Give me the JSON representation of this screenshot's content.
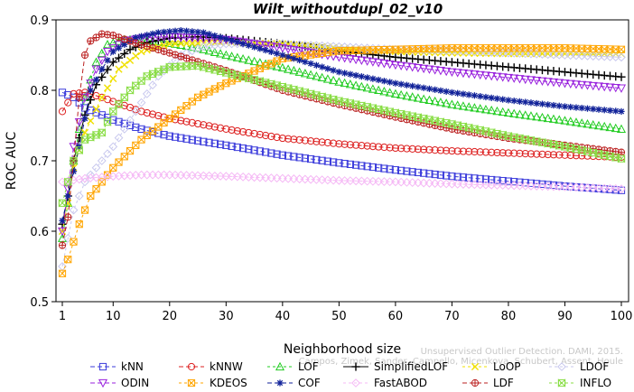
{
  "chart_data": {
    "type": "line",
    "title": "Wilt_withoutdupl_02_v10",
    "xlabel": "Neighborhood size",
    "ylabel": "ROC AUC",
    "xlim": [
      1,
      100
    ],
    "ylim": [
      0.5,
      0.9
    ],
    "xticks": [
      1,
      10,
      20,
      30,
      40,
      50,
      60,
      70,
      80,
      90,
      100
    ],
    "yticks": [
      0.5,
      0.6,
      0.7,
      0.8,
      0.9
    ],
    "grid": false,
    "legend_position": "bottom",
    "watermark": [
      "Campos, Zimek, Sander, Campello, Micenkova, Schubert, Assent, Houle",
      "Unsupervised Outlier Detection. DAMI, 2015."
    ],
    "series": [
      {
        "name": "kNN",
        "color": "#3b3bdb",
        "marker": "square",
        "dash": "5,3",
        "points": [
          [
            1,
            0.797
          ],
          [
            3,
            0.79
          ],
          [
            5,
            0.775
          ],
          [
            8,
            0.765
          ],
          [
            10,
            0.758
          ],
          [
            15,
            0.745
          ],
          [
            20,
            0.735
          ],
          [
            30,
            0.722
          ],
          [
            40,
            0.708
          ],
          [
            50,
            0.697
          ],
          [
            60,
            0.687
          ],
          [
            70,
            0.678
          ],
          [
            80,
            0.671
          ],
          [
            90,
            0.664
          ],
          [
            100,
            0.658
          ]
        ]
      },
      {
        "name": "kNNW",
        "color": "#dd2222",
        "marker": "circle",
        "dash": "5,3",
        "points": [
          [
            1,
            0.77
          ],
          [
            3,
            0.795
          ],
          [
            5,
            0.797
          ],
          [
            8,
            0.79
          ],
          [
            10,
            0.784
          ],
          [
            15,
            0.77
          ],
          [
            20,
            0.76
          ],
          [
            30,
            0.745
          ],
          [
            40,
            0.732
          ],
          [
            50,
            0.724
          ],
          [
            60,
            0.718
          ],
          [
            70,
            0.714
          ],
          [
            80,
            0.711
          ],
          [
            90,
            0.708
          ],
          [
            100,
            0.705
          ]
        ]
      },
      {
        "name": "LOF",
        "color": "#22cc22",
        "marker": "triangle-up",
        "dash": "3,3",
        "points": [
          [
            1,
            0.59
          ],
          [
            2,
            0.64
          ],
          [
            3,
            0.7
          ],
          [
            5,
            0.79
          ],
          [
            7,
            0.84
          ],
          [
            9,
            0.865
          ],
          [
            12,
            0.872
          ],
          [
            15,
            0.872
          ],
          [
            20,
            0.867
          ],
          [
            25,
            0.86
          ],
          [
            30,
            0.85
          ],
          [
            40,
            0.832
          ],
          [
            50,
            0.812
          ],
          [
            60,
            0.795
          ],
          [
            70,
            0.78
          ],
          [
            80,
            0.768
          ],
          [
            90,
            0.757
          ],
          [
            100,
            0.745
          ]
        ]
      },
      {
        "name": "SimplifiedLOF",
        "color": "#000000",
        "marker": "plus",
        "dash": "none",
        "points": [
          [
            1,
            0.61
          ],
          [
            2,
            0.65
          ],
          [
            3,
            0.7
          ],
          [
            5,
            0.765
          ],
          [
            7,
            0.808
          ],
          [
            10,
            0.84
          ],
          [
            13,
            0.858
          ],
          [
            16,
            0.868
          ],
          [
            20,
            0.874
          ],
          [
            25,
            0.876
          ],
          [
            30,
            0.874
          ],
          [
            40,
            0.866
          ],
          [
            50,
            0.856
          ],
          [
            60,
            0.847
          ],
          [
            70,
            0.84
          ],
          [
            80,
            0.833
          ],
          [
            90,
            0.826
          ],
          [
            100,
            0.819
          ]
        ]
      },
      {
        "name": "LoOP",
        "color": "#f0e000",
        "marker": "x",
        "dash": "3,3",
        "points": [
          [
            1,
            0.6
          ],
          [
            2,
            0.64
          ],
          [
            3,
            0.69
          ],
          [
            5,
            0.74
          ],
          [
            8,
            0.79
          ],
          [
            11,
            0.83
          ],
          [
            15,
            0.855
          ],
          [
            20,
            0.866
          ],
          [
            30,
            0.868
          ],
          [
            40,
            0.866
          ],
          [
            50,
            0.86
          ],
          [
            60,
            0.855
          ],
          [
            70,
            0.853
          ],
          [
            80,
            0.852
          ],
          [
            90,
            0.852
          ],
          [
            100,
            0.852
          ]
        ]
      },
      {
        "name": "LDOF",
        "color": "#c8c8ee",
        "marker": "diamond",
        "dash": "3,3",
        "points": [
          [
            1,
            0.55
          ],
          [
            2,
            0.59
          ],
          [
            3,
            0.63
          ],
          [
            5,
            0.67
          ],
          [
            8,
            0.7
          ],
          [
            10,
            0.72
          ],
          [
            14,
            0.77
          ],
          [
            18,
            0.82
          ],
          [
            22,
            0.85
          ],
          [
            26,
            0.862
          ],
          [
            30,
            0.866
          ],
          [
            40,
            0.866
          ],
          [
            50,
            0.862
          ],
          [
            60,
            0.858
          ],
          [
            70,
            0.856
          ],
          [
            80,
            0.853
          ],
          [
            90,
            0.85
          ],
          [
            100,
            0.847
          ]
        ]
      },
      {
        "name": "ODIN",
        "color": "#9922dd",
        "marker": "triangle-down",
        "dash": "5,3",
        "points": [
          [
            1,
            0.6
          ],
          [
            3,
            0.72
          ],
          [
            5,
            0.79
          ],
          [
            7,
            0.83
          ],
          [
            9,
            0.855
          ],
          [
            12,
            0.87
          ],
          [
            16,
            0.875
          ],
          [
            20,
            0.876
          ],
          [
            30,
            0.872
          ],
          [
            40,
            0.86
          ],
          [
            50,
            0.847
          ],
          [
            60,
            0.836
          ],
          [
            70,
            0.826
          ],
          [
            80,
            0.818
          ],
          [
            90,
            0.81
          ],
          [
            100,
            0.803
          ]
        ]
      },
      {
        "name": "KDEOS",
        "color": "#ffa500",
        "marker": "square-x",
        "dash": "3,3",
        "points": [
          [
            1,
            0.54
          ],
          [
            2,
            0.56
          ],
          [
            4,
            0.61
          ],
          [
            6,
            0.65
          ],
          [
            8,
            0.67
          ],
          [
            10,
            0.69
          ],
          [
            15,
            0.73
          ],
          [
            20,
            0.76
          ],
          [
            25,
            0.79
          ],
          [
            30,
            0.81
          ],
          [
            40,
            0.845
          ],
          [
            50,
            0.856
          ],
          [
            60,
            0.858
          ],
          [
            70,
            0.86
          ],
          [
            80,
            0.86
          ],
          [
            90,
            0.86
          ],
          [
            100,
            0.858
          ]
        ]
      },
      {
        "name": "COF",
        "color": "#112299",
        "marker": "asterisk",
        "dash": "5,3",
        "points": [
          [
            1,
            0.615
          ],
          [
            2,
            0.65
          ],
          [
            4,
            0.72
          ],
          [
            6,
            0.8
          ],
          [
            8,
            0.83
          ],
          [
            10,
            0.855
          ],
          [
            14,
            0.875
          ],
          [
            18,
            0.882
          ],
          [
            22,
            0.885
          ],
          [
            26,
            0.882
          ],
          [
            30,
            0.873
          ],
          [
            40,
            0.85
          ],
          [
            50,
            0.826
          ],
          [
            60,
            0.81
          ],
          [
            70,
            0.797
          ],
          [
            80,
            0.786
          ],
          [
            90,
            0.777
          ],
          [
            100,
            0.77
          ]
        ]
      },
      {
        "name": "FastABOD",
        "color": "#f5b8f5",
        "marker": "diamond",
        "dash": "3,3",
        "points": [
          [
            1,
            0.67
          ],
          [
            5,
            0.675
          ],
          [
            10,
            0.678
          ],
          [
            15,
            0.68
          ],
          [
            20,
            0.68
          ],
          [
            30,
            0.678
          ],
          [
            40,
            0.675
          ],
          [
            50,
            0.672
          ],
          [
            60,
            0.67
          ],
          [
            70,
            0.667
          ],
          [
            80,
            0.665
          ],
          [
            90,
            0.663
          ],
          [
            100,
            0.66
          ]
        ]
      },
      {
        "name": "LDF",
        "color": "#bb2222",
        "marker": "circle-plus",
        "dash": "5,3",
        "points": [
          [
            1,
            0.58
          ],
          [
            2,
            0.62
          ],
          [
            3,
            0.7
          ],
          [
            4,
            0.79
          ],
          [
            5,
            0.85
          ],
          [
            6,
            0.87
          ],
          [
            8,
            0.88
          ],
          [
            10,
            0.878
          ],
          [
            14,
            0.867
          ],
          [
            20,
            0.853
          ],
          [
            30,
            0.828
          ],
          [
            40,
            0.8
          ],
          [
            50,
            0.78
          ],
          [
            60,
            0.762
          ],
          [
            70,
            0.745
          ],
          [
            80,
            0.732
          ],
          [
            90,
            0.722
          ],
          [
            100,
            0.712
          ]
        ]
      },
      {
        "name": "INFLO",
        "color": "#88dd44",
        "marker": "bowtie",
        "dash": "3,3",
        "points": [
          [
            1,
            0.64
          ],
          [
            3,
            0.7
          ],
          [
            5,
            0.73
          ],
          [
            8,
            0.74
          ],
          [
            10,
            0.77
          ],
          [
            13,
            0.8
          ],
          [
            16,
            0.82
          ],
          [
            20,
            0.833
          ],
          [
            25,
            0.835
          ],
          [
            30,
            0.825
          ],
          [
            40,
            0.805
          ],
          [
            50,
            0.785
          ],
          [
            60,
            0.768
          ],
          [
            70,
            0.752
          ],
          [
            80,
            0.735
          ],
          [
            90,
            0.72
          ],
          [
            100,
            0.703
          ]
        ]
      }
    ]
  }
}
